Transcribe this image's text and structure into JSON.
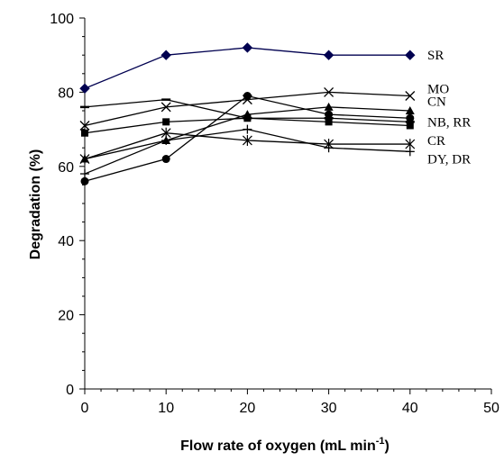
{
  "chart_data": {
    "type": "line",
    "xlabel": "Flow rate of oxygen (mL min",
    "xlabel_sup": "-1",
    "xlabel_close": ")",
    "ylabel": "Degradation (%)",
    "xlim": [
      0,
      50
    ],
    "ylim": [
      0,
      100
    ],
    "x_ticks": [
      "0",
      "10",
      "20",
      "30",
      "40",
      "50"
    ],
    "y_ticks": [
      "0",
      "20",
      "40",
      "60",
      "80",
      "100"
    ],
    "grid": false,
    "x": [
      0,
      10,
      20,
      30,
      40
    ],
    "series": [
      {
        "marker": "diamond",
        "values": [
          81,
          90,
          92,
          90,
          90
        ]
      },
      {
        "marker": "circle",
        "values": [
          56,
          62,
          79,
          74,
          73
        ]
      },
      {
        "marker": "x",
        "values": [
          71,
          76,
          78,
          80,
          79
        ]
      },
      {
        "marker": "dash",
        "values": [
          76,
          78,
          73,
          73,
          72
        ]
      },
      {
        "marker": "triangle",
        "values": [
          62,
          67,
          74,
          76,
          75
        ]
      },
      {
        "marker": "square",
        "values": [
          69,
          72,
          73,
          72,
          71
        ]
      },
      {
        "marker": "star",
        "values": [
          62,
          69,
          67,
          66,
          66
        ]
      },
      {
        "marker": "plus",
        "values": [
          58,
          67,
          70,
          65,
          64
        ]
      }
    ],
    "annotations": [
      {
        "text": "SR",
        "at_value": 90
      },
      {
        "text": "MO",
        "at_value": 81
      },
      {
        "text": "CN",
        "at_value": 77.5
      },
      {
        "text": "NB, RR",
        "at_value": 72
      },
      {
        "text": "CR",
        "at_value": 67
      },
      {
        "text": "DY, DR",
        "at_value": 62
      }
    ]
  }
}
